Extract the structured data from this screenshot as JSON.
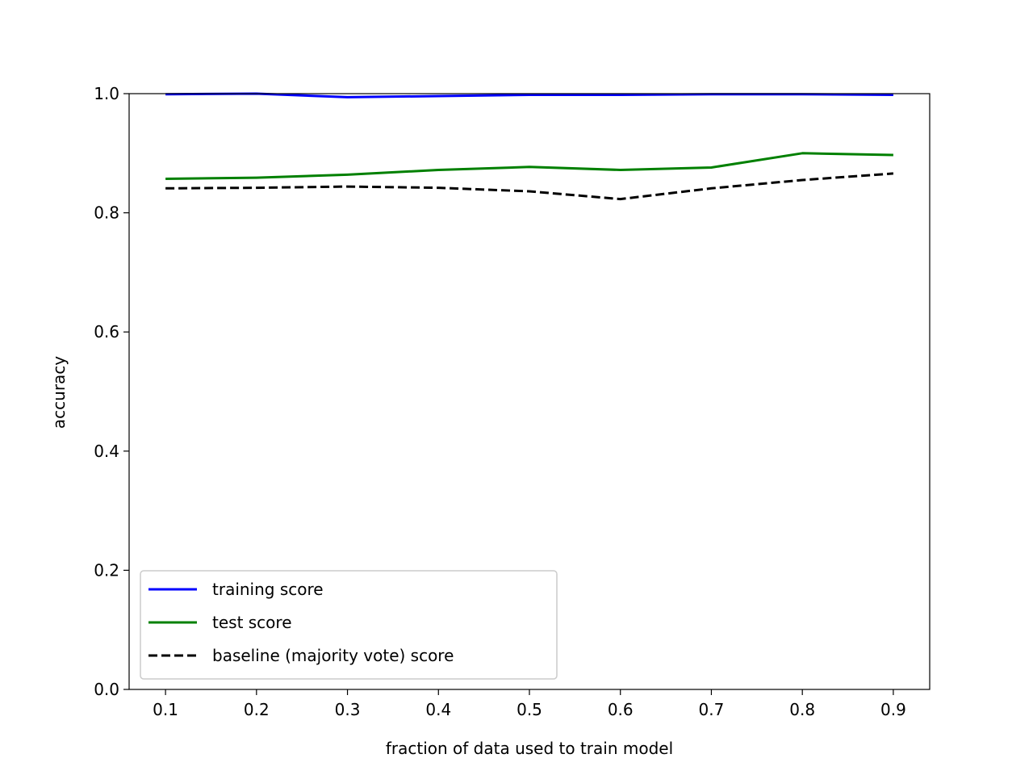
{
  "chart_data": {
    "type": "line",
    "title": "",
    "xlabel": "fraction of data used to train model",
    "ylabel": "accuracy",
    "xlim": [
      0.06,
      0.94
    ],
    "ylim": [
      0.0,
      1.0
    ],
    "xticks": [
      0.1,
      0.2,
      0.3,
      0.4,
      0.5,
      0.6,
      0.7,
      0.8,
      0.9
    ],
    "xtick_labels": [
      "0.1",
      "0.2",
      "0.3",
      "0.4",
      "0.5",
      "0.6",
      "0.7",
      "0.8",
      "0.9"
    ],
    "yticks": [
      0.0,
      0.2,
      0.4,
      0.6,
      0.8,
      1.0
    ],
    "ytick_labels": [
      "0.0",
      "0.2",
      "0.4",
      "0.6",
      "0.8",
      "1.0"
    ],
    "grid": false,
    "legend_position": "lower-left",
    "x": [
      0.1,
      0.2,
      0.3,
      0.4,
      0.5,
      0.6,
      0.7,
      0.8,
      0.9
    ],
    "series": [
      {
        "name": "training score",
        "color": "#0000ff",
        "dash": "solid",
        "values": [
          0.999,
          1.0,
          0.994,
          0.996,
          0.998,
          0.998,
          0.999,
          0.999,
          0.998
        ]
      },
      {
        "name": "test score",
        "color": "#008000",
        "dash": "solid",
        "values": [
          0.857,
          0.859,
          0.864,
          0.872,
          0.877,
          0.872,
          0.876,
          0.9,
          0.897
        ]
      },
      {
        "name": "baseline (majority vote) score",
        "color": "#000000",
        "dash": "dashed",
        "values": [
          0.841,
          0.842,
          0.844,
          0.842,
          0.836,
          0.823,
          0.841,
          0.855,
          0.866
        ]
      }
    ]
  }
}
